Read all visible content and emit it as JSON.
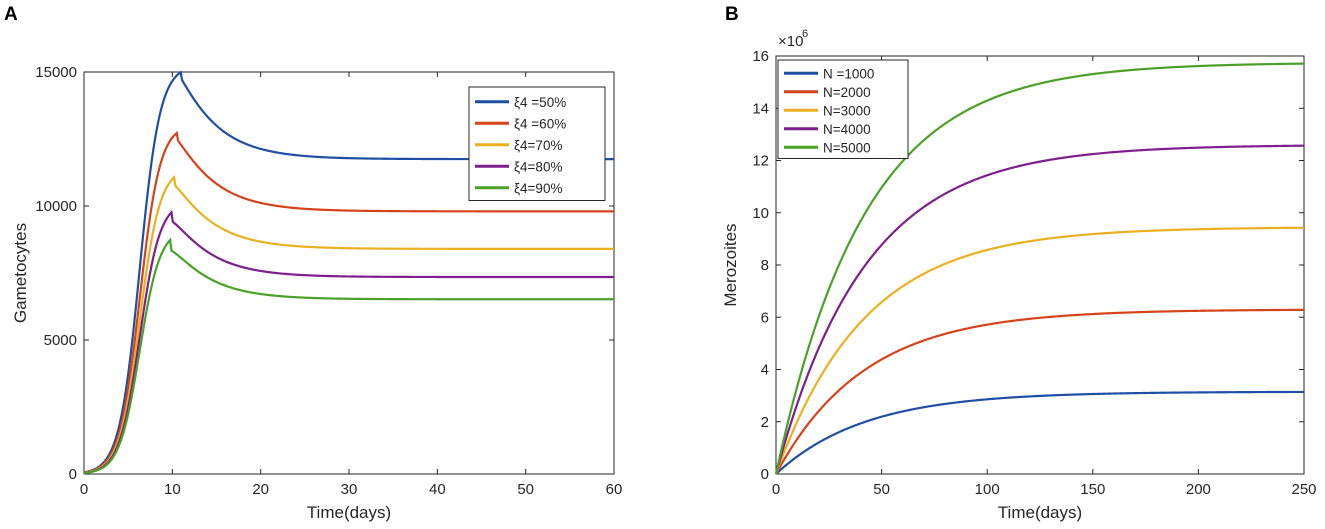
{
  "panels": [
    {
      "letter": "A"
    },
    {
      "letter": "B"
    }
  ],
  "chart_data": [
    {
      "type": "line",
      "panel": "A",
      "title": "",
      "xlabel": "Time(days)",
      "ylabel": "Gametocytes",
      "xlim": [
        0,
        60
      ],
      "ylim": [
        0,
        15000
      ],
      "xticks": [
        0,
        10,
        20,
        30,
        40,
        50,
        60
      ],
      "yticks": [
        0,
        5000,
        10000,
        15000
      ],
      "legend_position": "top-right",
      "series": [
        {
          "name": "ξ4 =50%",
          "color": "#1f4fa5",
          "peak_day": 11,
          "peak": 15000,
          "steady": 11750
        },
        {
          "name": "ξ4 =60%",
          "color": "#d6431b",
          "peak_day": 10.6,
          "peak": 12750,
          "steady": 9800
        },
        {
          "name": "ξ4=70%",
          "color": "#eab020",
          "peak_day": 10.3,
          "peak": 11100,
          "steady": 8400
        },
        {
          "name": "ξ4=80%",
          "color": "#7d1f8c",
          "peak_day": 10,
          "peak": 9800,
          "steady": 7350
        },
        {
          "name": "ξ4=90%",
          "color": "#4aa128",
          "peak_day": 9.8,
          "peak": 8750,
          "steady": 6520
        }
      ]
    },
    {
      "type": "line",
      "panel": "B",
      "title": "",
      "xlabel": "Time(days)",
      "ylabel": "Merozoites",
      "y_exponent": "×10",
      "y_exponent_power": "6",
      "xlim": [
        0,
        250
      ],
      "ylim": [
        0,
        16
      ],
      "xticks": [
        0,
        50,
        100,
        150,
        200,
        250
      ],
      "yticks": [
        0,
        2,
        4,
        6,
        8,
        10,
        12,
        14,
        16
      ],
      "legend_position": "top-left",
      "series": [
        {
          "name": "N =1000",
          "color": "#1f4fa5",
          "plateau": 3.15
        },
        {
          "name": "N=2000",
          "color": "#d6431b",
          "plateau": 6.3
        },
        {
          "name": "N=3000",
          "color": "#eab020",
          "plateau": 9.45
        },
        {
          "name": "N=4000",
          "color": "#7d1f8c",
          "plateau": 12.6
        },
        {
          "name": "N=5000",
          "color": "#4aa128",
          "plateau": 15.75
        }
      ]
    }
  ]
}
